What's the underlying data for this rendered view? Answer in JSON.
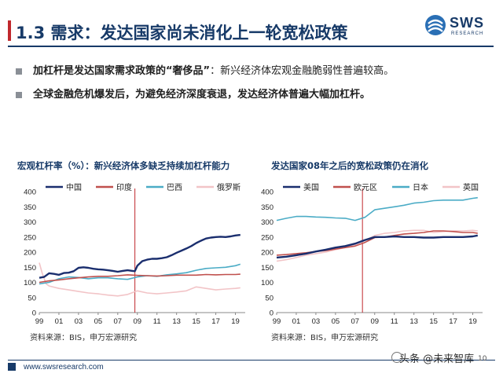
{
  "header": {
    "title": "1.3 需求：发达国家尚未消化上一轮宽松政策",
    "logo_name": "SWS",
    "logo_sub": "RESEARCH"
  },
  "bullets": [
    {
      "bold": "加杠杆是发达国家需求政策的“奢侈品”",
      "rest": "：新兴经济体宏观金融脆弱性普遍较高。"
    },
    {
      "bold": "全球金融危机爆发后，为避免经济深度衰退，发达经济体普遍大幅加杠杆。",
      "rest": ""
    }
  ],
  "footer": {
    "url": "www.swsresearch.com",
    "watermark": "头条 @未来智库",
    "page_number": "10"
  },
  "colors": {
    "navy": "#173a68",
    "red": "#c0282d"
  },
  "chart_data": [
    {
      "type": "line",
      "title": "宏观杠杆率（%）：新兴经济体多缺乏持续加杠杆能力",
      "source": "资料来源：BIS，申万宏源研究",
      "ylim": [
        0,
        400
      ],
      "yticks": [
        0,
        50,
        100,
        150,
        200,
        250,
        300,
        350,
        400
      ],
      "xlim": [
        1999,
        2020
      ],
      "xticks": [
        "99",
        "01",
        "03",
        "05",
        "07",
        "09",
        "11",
        "13",
        "15",
        "17",
        "19"
      ],
      "marker_x": 2008.75,
      "legend": "top",
      "series": [
        {
          "name": "中国",
          "color": "#1a2e6e",
          "width": 2.4,
          "x": [
            1999,
            1999.5,
            2000,
            2000.5,
            2001,
            2001.5,
            2002,
            2002.5,
            2003,
            2003.5,
            2004,
            2004.5,
            2005,
            2005.5,
            2006,
            2006.5,
            2007,
            2007.5,
            2008,
            2008.5,
            2008.75,
            2009,
            2009.5,
            2010,
            2010.5,
            2011,
            2011.5,
            2012,
            2012.5,
            2013,
            2013.5,
            2014,
            2014.5,
            2015,
            2015.5,
            2016,
            2016.5,
            2017,
            2017.5,
            2018,
            2018.5,
            2019,
            2019.5
          ],
          "y": [
            115,
            118,
            130,
            128,
            125,
            131,
            132,
            137,
            148,
            150,
            148,
            145,
            143,
            142,
            140,
            138,
            135,
            138,
            140,
            138,
            137,
            155,
            170,
            175,
            178,
            178,
            180,
            183,
            190,
            198,
            205,
            212,
            220,
            230,
            238,
            245,
            248,
            250,
            251,
            250,
            252,
            255,
            257
          ]
        },
        {
          "name": "印度",
          "color": "#c0504d",
          "width": 1.6,
          "x": [
            1999,
            2000,
            2001,
            2002,
            2003,
            2004,
            2005,
            2006,
            2007,
            2008,
            2009,
            2010,
            2011,
            2012,
            2013,
            2014,
            2015,
            2016,
            2017,
            2018,
            2019,
            2019.5
          ],
          "y": [
            100,
            105,
            108,
            112,
            115,
            118,
            120,
            120,
            122,
            125,
            123,
            122,
            121,
            122,
            124,
            124,
            124,
            126,
            125,
            126,
            126,
            127
          ]
        },
        {
          "name": "巴西",
          "color": "#4bacc6",
          "width": 1.6,
          "x": [
            1999,
            2000,
            2001,
            2002,
            2003,
            2004,
            2005,
            2006,
            2007,
            2008,
            2009,
            2010,
            2011,
            2012,
            2013,
            2014,
            2015,
            2016,
            2017,
            2018,
            2019,
            2019.5
          ],
          "y": [
            95,
            100,
            112,
            118,
            116,
            112,
            115,
            115,
            112,
            110,
            118,
            122,
            120,
            125,
            128,
            132,
            140,
            146,
            148,
            150,
            155,
            160
          ]
        },
        {
          "name": "俄罗斯",
          "color": "#f2c4c7",
          "width": 1.6,
          "x": [
            1999,
            1999.3,
            1999.7,
            2000,
            2001,
            2002,
            2003,
            2004,
            2005,
            2006,
            2007,
            2008,
            2009,
            2010,
            2011,
            2012,
            2013,
            2014,
            2015,
            2016,
            2017,
            2018,
            2019,
            2019.5
          ],
          "y": [
            165,
            130,
            95,
            88,
            80,
            75,
            70,
            65,
            62,
            58,
            55,
            60,
            72,
            65,
            62,
            65,
            68,
            72,
            85,
            80,
            75,
            78,
            80,
            82
          ]
        }
      ]
    },
    {
      "type": "line",
      "title": "发达国家08年之后的宽松政策仍在消化",
      "source": "资料来源：BIS，申万宏源研究",
      "ylim": [
        0,
        400
      ],
      "yticks": [
        0,
        50,
        100,
        150,
        200,
        250,
        300,
        350,
        400
      ],
      "xlim": [
        1999,
        2020
      ],
      "xticks": [
        "99",
        "01",
        "03",
        "05",
        "07",
        "09",
        "11",
        "13",
        "15",
        "17",
        "19"
      ],
      "marker_x": 2007.75,
      "legend": "top",
      "series": [
        {
          "name": "美国",
          "color": "#1a2e6e",
          "width": 2.4,
          "x": [
            1999,
            2000,
            2001,
            2002,
            2003,
            2004,
            2005,
            2006,
            2007,
            2008,
            2009,
            2010,
            2011,
            2012,
            2013,
            2014,
            2015,
            2016,
            2017,
            2018,
            2019,
            2019.5
          ],
          "y": [
            182,
            185,
            190,
            195,
            202,
            208,
            215,
            220,
            228,
            240,
            250,
            250,
            252,
            250,
            250,
            248,
            248,
            250,
            250,
            250,
            252,
            255
          ]
        },
        {
          "name": "欧元区",
          "color": "#c0504d",
          "width": 1.6,
          "x": [
            1999,
            2000,
            2001,
            2002,
            2003,
            2004,
            2005,
            2006,
            2007,
            2008,
            2009,
            2010,
            2011,
            2012,
            2013,
            2014,
            2015,
            2016,
            2017,
            2018,
            2019,
            2019.5
          ],
          "y": [
            190,
            192,
            195,
            198,
            202,
            205,
            210,
            215,
            220,
            232,
            248,
            250,
            255,
            260,
            262,
            265,
            270,
            270,
            268,
            265,
            265,
            262
          ]
        },
        {
          "name": "日本",
          "color": "#4bacc6",
          "width": 1.6,
          "x": [
            1999,
            2000,
            2001,
            2002,
            2003,
            2004,
            2005,
            2006,
            2007,
            2008,
            2009,
            2010,
            2011,
            2012,
            2013,
            2014,
            2015,
            2016,
            2017,
            2018,
            2019,
            2019.5
          ],
          "y": [
            305,
            312,
            318,
            318,
            316,
            315,
            313,
            312,
            305,
            315,
            340,
            345,
            350,
            355,
            362,
            365,
            370,
            372,
            372,
            372,
            378,
            380
          ]
        },
        {
          "name": "英国",
          "color": "#f2c4c7",
          "width": 1.6,
          "x": [
            1999,
            2000,
            2001,
            2002,
            2003,
            2004,
            2005,
            2006,
            2007,
            2008,
            2009,
            2010,
            2011,
            2012,
            2013,
            2014,
            2015,
            2016,
            2017,
            2018,
            2019,
            2019.5
          ],
          "y": [
            170,
            175,
            182,
            190,
            195,
            200,
            208,
            215,
            225,
            238,
            255,
            262,
            265,
            270,
            272,
            272,
            265,
            268,
            270,
            270,
            272,
            270
          ]
        }
      ]
    }
  ]
}
